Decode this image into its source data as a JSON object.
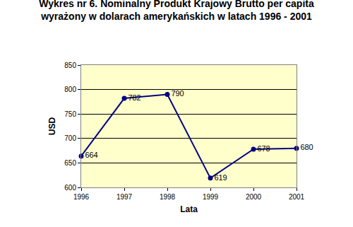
{
  "chart_data": {
    "type": "line",
    "title": [
      "Wykres nr 6. Nominalny Produkt Krajowy Brutto per capita",
      "wyrażony w dolarach amerykańskich w latach 1996 - 2001"
    ],
    "x_label": "Lata",
    "y_label": "USD",
    "x": [
      1996,
      1997,
      1998,
      1999,
      2000,
      2001
    ],
    "values": [
      664,
      782,
      790,
      619,
      678,
      680
    ],
    "color": "#000080",
    "marker": "circle",
    "line_style": "solid",
    "data_labels": true,
    "grid": true,
    "xlim": [
      1996,
      2001
    ],
    "xticks": [
      1996,
      1997,
      1998,
      1999,
      2000,
      2001
    ],
    "ylim": [
      600,
      850
    ],
    "yticks": [
      600,
      650,
      700,
      750,
      800,
      850
    ]
  }
}
